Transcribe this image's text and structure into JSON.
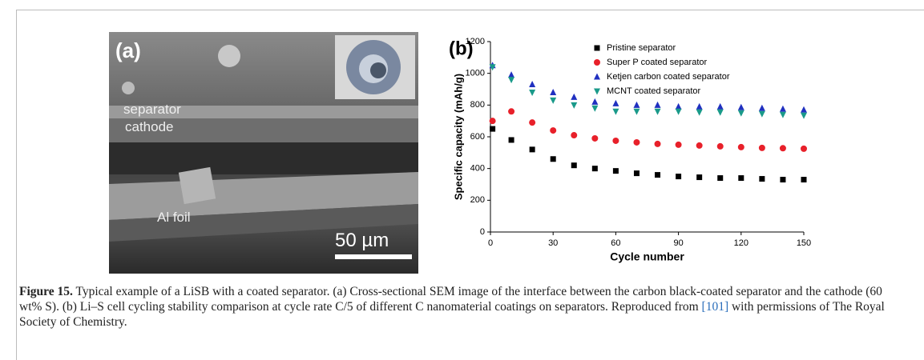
{
  "panel_a": {
    "label": "(a)",
    "layer_top": "separator",
    "layer_mid": "cathode",
    "layer_bottom": "Al foil",
    "scale_bar": "50 µm"
  },
  "chart_data": {
    "type": "scatter",
    "panel_label": "(b)",
    "x_label": "Cycle number",
    "y_label": "Specific capacity (mAh/g)",
    "xlim": [
      0,
      150
    ],
    "xticks": [
      0,
      30,
      60,
      90,
      120,
      150
    ],
    "ylim": [
      0,
      1200
    ],
    "yticks": [
      0,
      200,
      400,
      600,
      800,
      1000,
      1200
    ],
    "x": [
      1,
      10,
      20,
      30,
      40,
      50,
      60,
      70,
      80,
      90,
      100,
      110,
      120,
      130,
      140,
      150
    ],
    "series": [
      {
        "name": "Pristine separator",
        "color": "#000000",
        "marker": "square",
        "values": [
          650,
          580,
          520,
          460,
          420,
          400,
          385,
          370,
          360,
          350,
          345,
          340,
          340,
          335,
          330,
          330
        ]
      },
      {
        "name": "Super P coated separator",
        "color": "#e8202a",
        "marker": "circle",
        "values": [
          700,
          760,
          690,
          640,
          610,
          590,
          575,
          565,
          555,
          550,
          545,
          540,
          535,
          530,
          528,
          525
        ]
      },
      {
        "name": "Ketjen carbon coated separator",
        "color": "#2030c0",
        "marker": "triangle",
        "values": [
          1050,
          990,
          930,
          880,
          850,
          820,
          810,
          800,
          800,
          790,
          790,
          790,
          785,
          780,
          775,
          770
        ]
      },
      {
        "name": "MCNT coated separator",
        "color": "#1a9a8a",
        "marker": "triangle-down",
        "values": [
          1040,
          960,
          880,
          830,
          800,
          780,
          760,
          760,
          760,
          760,
          755,
          755,
          750,
          745,
          740,
          735
        ]
      }
    ]
  },
  "caption": {
    "label": "Figure 15.",
    "text_before": " Typical example of a LiSB with a coated separator. (a) Cross-sectional SEM image of the interface between the carbon black-coated separator and the cathode (60 wt% S). (b) Li–S cell cycling stability comparison at cycle rate C/5 of different C nanomaterial coatings on separators. Reproduced from ",
    "ref": "[101]",
    "text_after": " with permissions of The Royal Society of Chemistry."
  }
}
